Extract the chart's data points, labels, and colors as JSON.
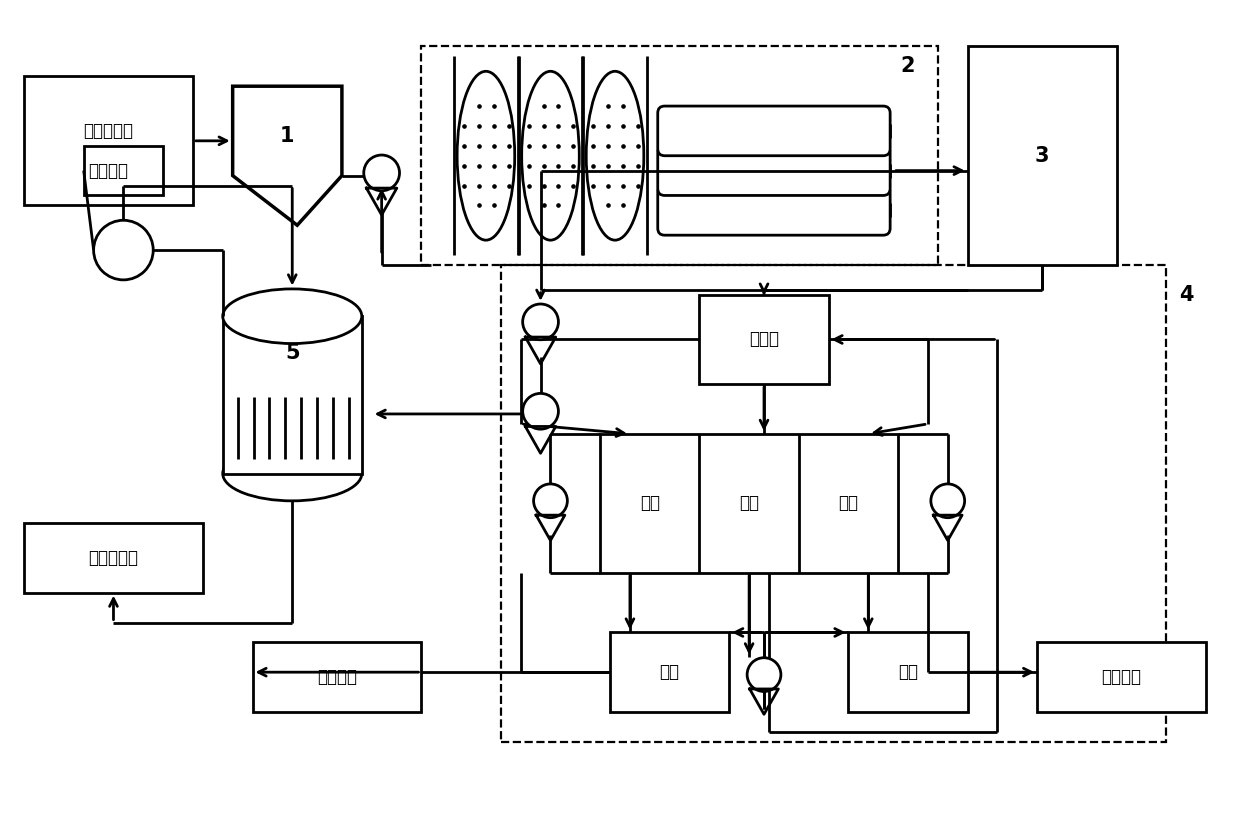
{
  "bg": "#ffffff",
  "lc": "#000000",
  "lw": 2.0,
  "lw_dash": 1.6,
  "fs_zh": 12,
  "fs_num": 15,
  "labels": {
    "input": [
      "催化剂再生",
      "酸洗废水"
    ],
    "box1": "1",
    "box2": "2",
    "box3": "3",
    "box4": "4",
    "box5": "5",
    "brine": "盐水罐",
    "acid_ch": "酸室",
    "salt_ch": "盐室",
    "alk_ch": "碱室",
    "acid_tank": "酸罐",
    "alk_tank": "碱罐",
    "cond_out": "冷凝水回用",
    "acid_out": "酸液回用",
    "alk_out": "碱液回用"
  }
}
